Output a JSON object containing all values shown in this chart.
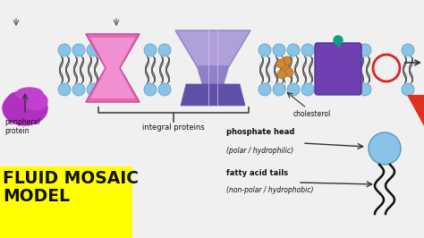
{
  "bg_color": "#f0f0f0",
  "head_color": "#89c4e8",
  "head_edge": "#5599bb",
  "tail_color": "#444444",
  "pink_fill": "#e868b8",
  "pink_light": "#f090d0",
  "pink_edge": "#d050a0",
  "purple_light": "#b0a0d8",
  "purple_mid": "#9080c8",
  "purple_dark": "#6050a8",
  "purple_block": "#7040b0",
  "peripheral_fill": "#b030c0",
  "chol_color": "#cc8833",
  "chol_edge": "#aa6622",
  "red_circle": "#dd2222",
  "teal_color": "#10a080",
  "yellow_fill": "#ffff00",
  "red_tri": "#e03020",
  "title": "FLUID MOSAIC\nMODEL",
  "lbl_integral": "integral proteins",
  "lbl_peripheral": "peripheral\nprotein",
  "lbl_cholesterol": "cholesterol",
  "lbl_ph_head": "phosphate head",
  "lbl_ph_sub": "(polar / hydrophilic)",
  "lbl_fa_head": "fatty acid tails",
  "lbl_fa_sub": "(non-polar / hydrophobic)"
}
